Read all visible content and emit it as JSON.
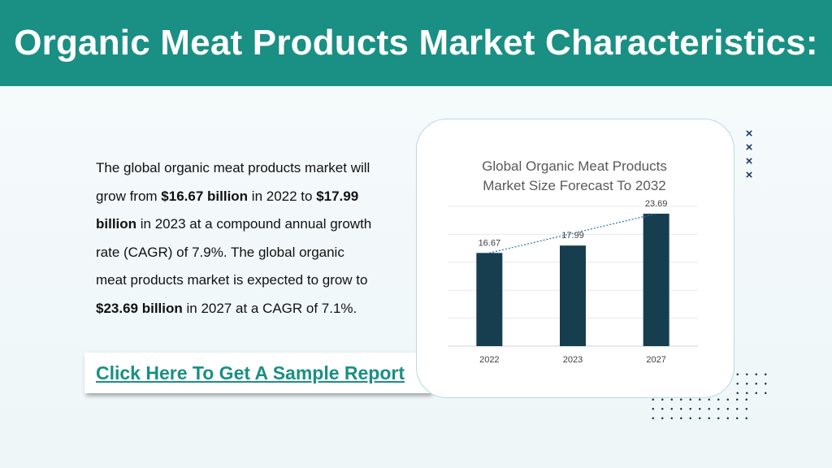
{
  "header": {
    "title": "Organic Meat Products Market Characteristics:"
  },
  "body": {
    "segments": [
      {
        "text": "The global organic meat products market will grow from ",
        "bold": false
      },
      {
        "text": "$16.67 billion",
        "bold": true
      },
      {
        "text": " in 2022 to ",
        "bold": false
      },
      {
        "text": "$17.99 billion",
        "bold": true
      },
      {
        "text": " in 2023 at a compound annual growth rate (CAGR) of 7.9%. The global organic meat products market is expected to grow to ",
        "bold": false
      },
      {
        "text": "$23.69 billion",
        "bold": true
      },
      {
        "text": " in 2027 at a CAGR of 7.1%.",
        "bold": false
      }
    ]
  },
  "cta": {
    "label": "Click Here To Get A Sample Report"
  },
  "decor": {
    "x_marks": [
      "×",
      "×",
      "×",
      "×"
    ]
  },
  "colors": {
    "brand": "#1a8f84",
    "bar": "#163e4f",
    "trend": "#2f6fa3"
  },
  "chart_data": {
    "type": "bar",
    "title_lines": [
      "Global Organic Meat Products",
      "Market Size Forecast To 2032"
    ],
    "categories": [
      "2022",
      "2023",
      "2027"
    ],
    "values": [
      16.67,
      17.99,
      23.69
    ],
    "data_labels": [
      "16.67",
      "17.99",
      "23.69"
    ],
    "ylim": [
      0,
      25
    ],
    "grid": true,
    "trendline": "dotted",
    "xlabel": "",
    "ylabel": ""
  }
}
